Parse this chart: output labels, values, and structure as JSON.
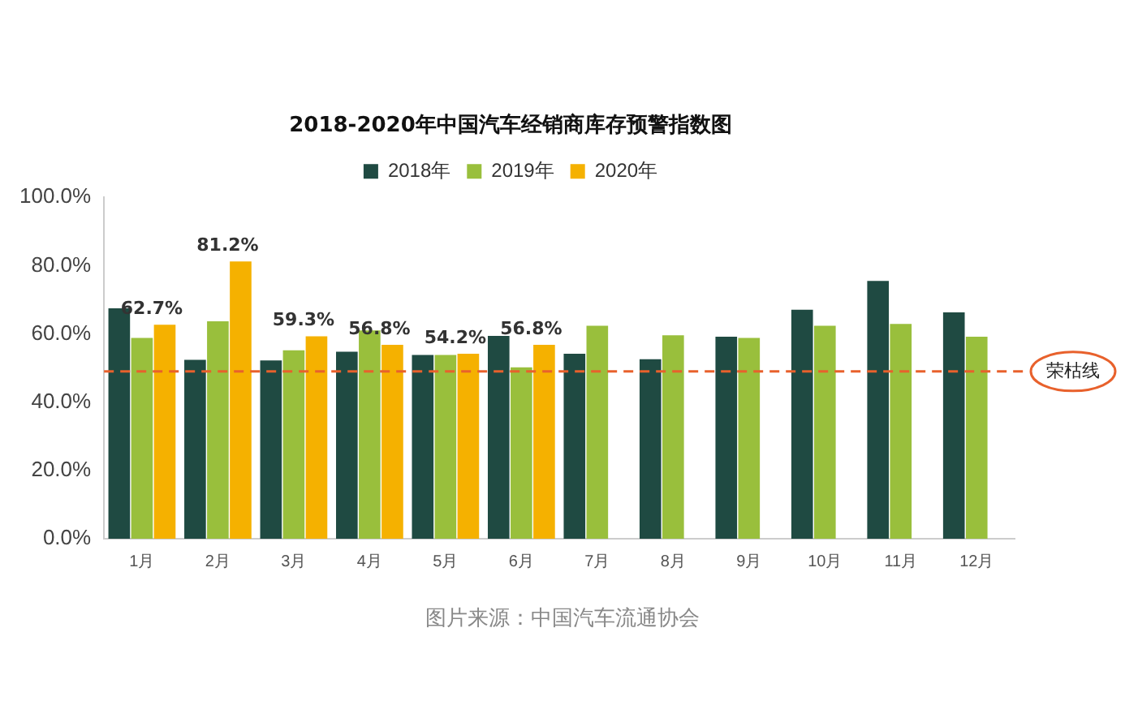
{
  "chart_data": {
    "type": "bar",
    "title": "2018-2020年中国汽车经销商库存预警指数图",
    "categories": [
      "1月",
      "2月",
      "3月",
      "4月",
      "5月",
      "6月",
      "7月",
      "8月",
      "9月",
      "10月",
      "11月",
      "12月"
    ],
    "series": [
      {
        "name": "2018年",
        "color": "#1f4a42",
        "values": [
          67.5,
          52.4,
          52.2,
          54.8,
          53.8,
          59.4,
          54.2,
          52.6,
          59.2,
          67.1,
          75.5,
          66.3
        ]
      },
      {
        "name": "2019年",
        "color": "#99bf3c",
        "values": [
          58.8,
          63.7,
          55.2,
          61.0,
          53.8,
          50.2,
          62.4,
          59.6,
          58.8,
          62.4,
          62.9,
          59.2
        ]
      },
      {
        "name": "2020年",
        "color": "#f5b100",
        "values": [
          62.7,
          81.2,
          59.3,
          56.8,
          54.2,
          56.8,
          null,
          null,
          null,
          null,
          null,
          null
        ],
        "value_labels": [
          "62.7%",
          "81.2%",
          "59.3%",
          "56.8%",
          "54.2%",
          "56.8%",
          null,
          null,
          null,
          null,
          null,
          null
        ]
      }
    ],
    "ylim": [
      0,
      100
    ],
    "yticks": [
      {
        "value": 0,
        "label": "0.0%"
      },
      {
        "value": 20,
        "label": "20.0%"
      },
      {
        "value": 40,
        "label": "40.0%"
      },
      {
        "value": 60,
        "label": "60.0%"
      },
      {
        "value": 80,
        "label": "80.0%"
      },
      {
        "value": 100,
        "label": "100.0%"
      }
    ],
    "grid": false,
    "legend": "top",
    "ref_lines": [
      {
        "axis": "y",
        "value": 49,
        "label": "荣枯线",
        "color": "#e8612c",
        "line_style": "dashed"
      }
    ],
    "annotations": [
      "图片来源：中国汽车流通协会"
    ]
  }
}
